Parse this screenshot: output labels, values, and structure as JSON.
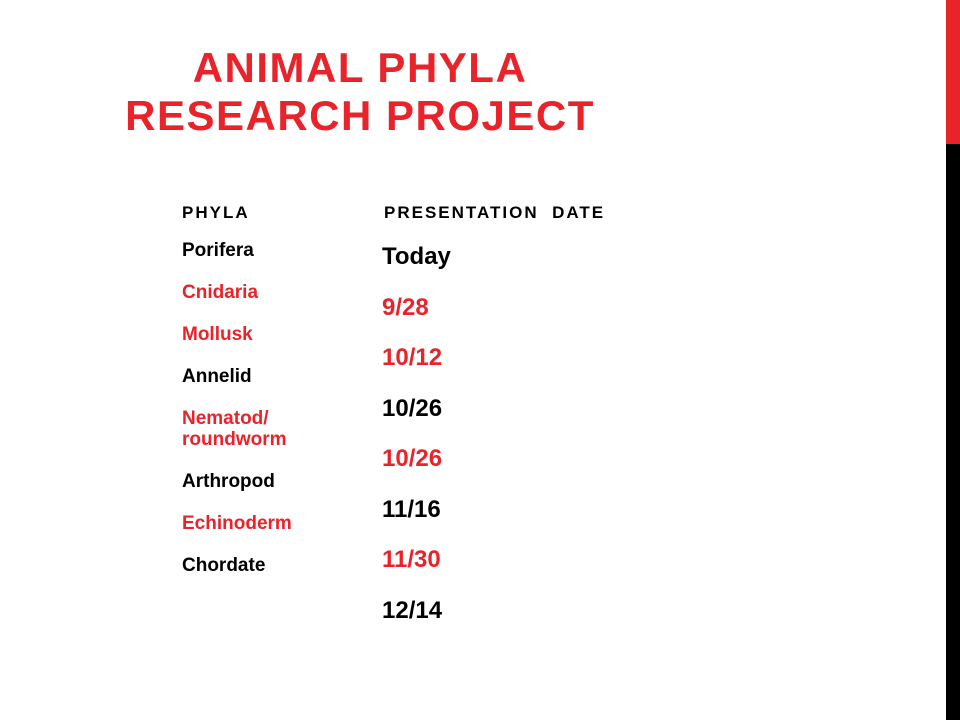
{
  "title": {
    "line1": "ANIMAL PHYLA",
    "line2": "RESEARCH PROJECT"
  },
  "table": {
    "headers": {
      "phyla": "PHYLA",
      "date": "PRESENTATION  DATE"
    },
    "phyla": [
      {
        "name": "Porifera",
        "color": "black"
      },
      {
        "name": "Cnidaria",
        "color": "red"
      },
      {
        "name": "Mollusk",
        "color": "red"
      },
      {
        "name": "Annelid",
        "color": "black"
      },
      {
        "name": "Nematod/\nroundworm",
        "color": "red"
      },
      {
        "name": "Arthropod",
        "color": "black"
      },
      {
        "name": "Echinoderm",
        "color": "red"
      },
      {
        "name": "Chordate",
        "color": "black"
      }
    ],
    "dates": [
      {
        "value": "Today",
        "color": "black"
      },
      {
        "value": "9/28",
        "color": "red"
      },
      {
        "value": "10/12",
        "color": "red"
      },
      {
        "value": "10/26",
        "color": "black"
      },
      {
        "value": "10/26",
        "color": "red"
      },
      {
        "value": "11/16",
        "color": "black"
      },
      {
        "value": "11/30",
        "color": "red"
      },
      {
        "value": "12/14",
        "color": "black"
      }
    ]
  },
  "colors": {
    "accent": "#e8232a",
    "text": "#000000",
    "background": "#ffffff"
  }
}
